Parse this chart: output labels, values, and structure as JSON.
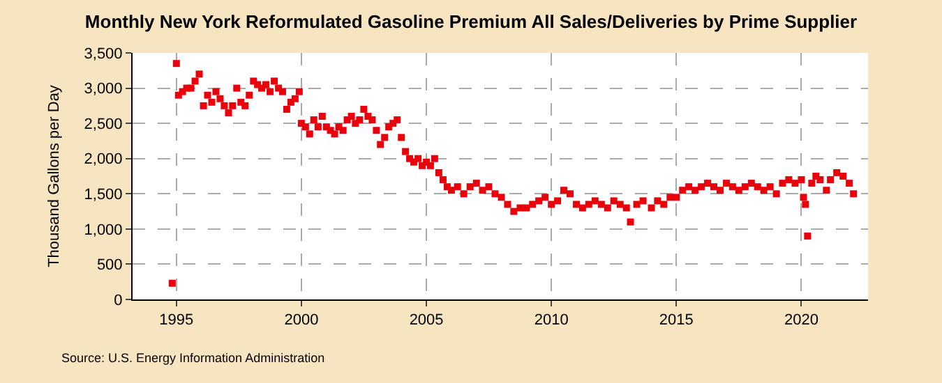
{
  "chart_data": {
    "type": "scatter",
    "title": "Monthly New York Reformulated Gasoline Premium All Sales/Deliveries by Prime Supplier",
    "ylabel": "Thousand Gallons per Day",
    "annotations": [
      "Source: U.S. Energy Information Administration"
    ],
    "x": [
      "1994-11",
      "1995-01",
      "1995-02",
      "1995-04",
      "1995-06",
      "1995-08",
      "1995-10",
      "1995-12",
      "1996-02",
      "1996-04",
      "1996-06",
      "1996-08",
      "1996-10",
      "1996-12",
      "1997-02",
      "1997-04",
      "1997-06",
      "1997-08",
      "1997-10",
      "1997-12",
      "1998-02",
      "1998-04",
      "1998-06",
      "1998-08",
      "1998-10",
      "1998-12",
      "1999-02",
      "1999-04",
      "1999-06",
      "1999-08",
      "1999-10",
      "1999-12",
      "2000-01",
      "2000-03",
      "2000-05",
      "2000-07",
      "2000-09",
      "2000-11",
      "2001-01",
      "2001-03",
      "2001-05",
      "2001-07",
      "2001-09",
      "2001-11",
      "2002-01",
      "2002-03",
      "2002-05",
      "2002-07",
      "2002-09",
      "2002-11",
      "2003-01",
      "2003-03",
      "2003-05",
      "2003-07",
      "2003-09",
      "2003-11",
      "2004-01",
      "2004-03",
      "2004-05",
      "2004-07",
      "2004-09",
      "2004-11",
      "2005-01",
      "2005-03",
      "2005-05",
      "2005-07",
      "2005-09",
      "2005-11",
      "2006-01",
      "2006-04",
      "2006-07",
      "2006-10",
      "2007-01",
      "2007-04",
      "2007-07",
      "2007-10",
      "2008-01",
      "2008-04",
      "2008-07",
      "2008-10",
      "2009-01",
      "2009-04",
      "2009-07",
      "2009-10",
      "2010-01",
      "2010-04",
      "2010-07",
      "2010-10",
      "2011-01",
      "2011-04",
      "2011-07",
      "2011-10",
      "2012-01",
      "2012-04",
      "2012-07",
      "2012-10",
      "2013-01",
      "2013-03",
      "2013-06",
      "2013-09",
      "2014-01",
      "2014-04",
      "2014-07",
      "2014-10",
      "2015-01",
      "2015-04",
      "2015-07",
      "2015-10",
      "2016-01",
      "2016-04",
      "2016-07",
      "2016-10",
      "2017-01",
      "2017-04",
      "2017-07",
      "2017-10",
      "2018-01",
      "2018-04",
      "2018-07",
      "2018-10",
      "2019-01",
      "2019-04",
      "2019-07",
      "2019-10",
      "2020-01",
      "2020-02",
      "2020-03",
      "2020-04",
      "2020-06",
      "2020-08",
      "2020-10",
      "2021-01",
      "2021-03",
      "2021-06",
      "2021-09",
      "2021-12",
      "2022-02"
    ],
    "series": [
      {
        "color": "#e8000b",
        "values": [
          230,
          3350,
          2900,
          2950,
          3000,
          3000,
          3100,
          3200,
          2750,
          2900,
          2800,
          2950,
          2850,
          2750,
          2650,
          2750,
          3000,
          2800,
          2750,
          2900,
          3100,
          3050,
          3000,
          3050,
          2950,
          3100,
          3000,
          2950,
          2700,
          2800,
          2850,
          2950,
          2500,
          2450,
          2350,
          2550,
          2450,
          2600,
          2450,
          2400,
          2350,
          2450,
          2400,
          2550,
          2600,
          2500,
          2550,
          2700,
          2600,
          2550,
          2400,
          2200,
          2300,
          2450,
          2500,
          2550,
          2300,
          2100,
          2000,
          1950,
          2000,
          1900,
          1950,
          1900,
          2000,
          1800,
          1700,
          1600,
          1550,
          1600,
          1500,
          1600,
          1650,
          1550,
          1600,
          1500,
          1450,
          1350,
          1250,
          1300,
          1300,
          1350,
          1400,
          1450,
          1350,
          1400,
          1550,
          1500,
          1350,
          1300,
          1350,
          1400,
          1350,
          1300,
          1400,
          1350,
          1300,
          1100,
          1350,
          1400,
          1300,
          1400,
          1350,
          1450,
          1450,
          1550,
          1600,
          1550,
          1600,
          1650,
          1600,
          1550,
          1650,
          1600,
          1550,
          1600,
          1650,
          1600,
          1550,
          1600,
          1500,
          1650,
          1700,
          1650,
          1700,
          1450,
          1350,
          900,
          1650,
          1750,
          1700,
          1550,
          1700,
          1800,
          1750,
          1650,
          1500
        ]
      }
    ],
    "marker": "square",
    "grid": true,
    "xlim": [
      "1993-04",
      "2022-09"
    ],
    "xticks": [
      {
        "value": "1995-01-01",
        "label": "1995"
      },
      {
        "value": "2000-01-01",
        "label": "2000"
      },
      {
        "value": "2005-01-01",
        "label": "2005"
      },
      {
        "value": "2010-01-01",
        "label": "2010"
      },
      {
        "value": "2015-01-01",
        "label": "2015"
      },
      {
        "value": "2020-01-01",
        "label": "2020"
      }
    ],
    "ylim": [
      0,
      3500
    ],
    "yticks": [
      0,
      500,
      {
        "value": 1000,
        "label": "1,000"
      },
      {
        "value": 1500,
        "label": "1,500"
      },
      {
        "value": 2000,
        "label": "2,000"
      },
      {
        "value": 2500,
        "label": "2,500"
      },
      {
        "value": 3000,
        "label": "3,000"
      },
      {
        "value": 3500,
        "label": "3,500"
      }
    ]
  }
}
